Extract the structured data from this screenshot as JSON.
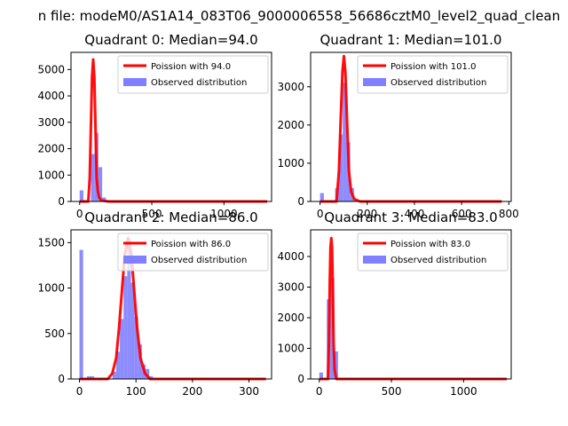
{
  "figure_title": "n file: modeM0/AS1A14_083T06_9000006558_56686cztM0_level2_quad_clean",
  "colors": {
    "poisson": "#ff0000",
    "observed": "#7f7fff",
    "observed_edge": "#0000ff",
    "axes": "#000000"
  },
  "chart_data": [
    {
      "type": "bar",
      "title": "Quadrant 0: Median=94.0",
      "xlim": [
        -60,
        1330
      ],
      "ylim": [
        0,
        5650
      ],
      "xticks": [
        0,
        500,
        1000
      ],
      "yticks": [
        0,
        1000,
        2000,
        3000,
        4000,
        5000
      ],
      "median": 94.0,
      "legend": {
        "position": "top-right",
        "poisson_label": "Poission with 94.0",
        "observed_label": "Observed distribution"
      },
      "hist_bins": [
        [
          0,
          26,
          420
        ],
        [
          52,
          26,
          0
        ],
        [
          78,
          26,
          1800
        ],
        [
          104,
          26,
          2600
        ],
        [
          130,
          26,
          1300
        ],
        [
          156,
          26,
          150
        ],
        [
          182,
          26,
          20
        ]
      ],
      "poisson_curve": [
        [
          0,
          0
        ],
        [
          60,
          0
        ],
        [
          70,
          900
        ],
        [
          78,
          2800
        ],
        [
          86,
          4700
        ],
        [
          94,
          5380
        ],
        [
          102,
          4700
        ],
        [
          110,
          2800
        ],
        [
          118,
          900
        ],
        [
          126,
          400
        ],
        [
          135,
          150
        ],
        [
          150,
          40
        ],
        [
          200,
          0
        ],
        [
          1300,
          0
        ]
      ]
    },
    {
      "type": "bar",
      "title": "Quadrant 1: Median=101.0",
      "xlim": [
        -40,
        810
      ],
      "ylim": [
        0,
        3900
      ],
      "xticks": [
        0,
        200,
        400,
        600,
        800
      ],
      "yticks": [
        0,
        1000,
        2000,
        3000
      ],
      "median": 101.0,
      "legend": {
        "position": "top-right",
        "poisson_label": "Poission with 101.0",
        "observed_label": "Observed distribution"
      },
      "hist_bins": [
        [
          0,
          16,
          220
        ],
        [
          16,
          16,
          0
        ],
        [
          32,
          16,
          0
        ],
        [
          48,
          16,
          20
        ],
        [
          64,
          16,
          350
        ],
        [
          80,
          16,
          1750
        ],
        [
          96,
          16,
          3100
        ],
        [
          112,
          16,
          1550
        ],
        [
          128,
          16,
          350
        ],
        [
          144,
          16,
          20
        ]
      ],
      "poisson_curve": [
        [
          0,
          0
        ],
        [
          70,
          0
        ],
        [
          80,
          800
        ],
        [
          88,
          2200
        ],
        [
          95,
          3400
        ],
        [
          101,
          3800
        ],
        [
          107,
          3400
        ],
        [
          114,
          2200
        ],
        [
          122,
          800
        ],
        [
          132,
          250
        ],
        [
          145,
          60
        ],
        [
          170,
          0
        ],
        [
          770,
          0
        ]
      ]
    },
    {
      "type": "bar",
      "title": "Quadrant 2: Median=86.0",
      "xlim": [
        -15,
        340
      ],
      "ylim": [
        0,
        1640
      ],
      "xticks": [
        0,
        100,
        200,
        300
      ],
      "yticks": [
        0,
        500,
        1000,
        1500
      ],
      "median": 86.0,
      "legend": {
        "position": "top-right",
        "poisson_label": "Poission with 86.0",
        "observed_label": "Observed distribution"
      },
      "hist_bins": [
        [
          0,
          6.5,
          1420
        ],
        [
          13,
          6.5,
          30
        ],
        [
          19.5,
          6.5,
          30
        ],
        [
          58.5,
          6.5,
          80
        ],
        [
          65,
          6.5,
          300
        ],
        [
          71.5,
          6.5,
          660
        ],
        [
          78,
          6.5,
          1130
        ],
        [
          84.5,
          6.5,
          1540
        ],
        [
          91,
          6.5,
          1060
        ],
        [
          97.5,
          6.5,
          680
        ],
        [
          104,
          6.5,
          380
        ],
        [
          110.5,
          6.5,
          160
        ],
        [
          117,
          6.5,
          110
        ],
        [
          123.5,
          6.5,
          30
        ]
      ],
      "poisson_curve": [
        [
          0,
          0
        ],
        [
          50,
          0
        ],
        [
          58,
          60
        ],
        [
          65,
          230
        ],
        [
          70,
          560
        ],
        [
          75,
          960
        ],
        [
          80,
          1360
        ],
        [
          86,
          1550
        ],
        [
          92,
          1360
        ],
        [
          97,
          960
        ],
        [
          102,
          560
        ],
        [
          108,
          230
        ],
        [
          116,
          60
        ],
        [
          125,
          0
        ],
        [
          330,
          0
        ]
      ]
    },
    {
      "type": "bar",
      "title": "Quadrant 3: Median=83.0",
      "xlim": [
        -60,
        1330
      ],
      "ylim": [
        0,
        4870
      ],
      "xticks": [
        0,
        500,
        1000
      ],
      "yticks": [
        0,
        1000,
        2000,
        3000,
        4000
      ],
      "median": 83.0,
      "legend": {
        "position": "top-right",
        "poisson_label": "Poission with 83.0",
        "observed_label": "Observed distribution"
      },
      "hist_bins": [
        [
          0,
          26,
          210
        ],
        [
          52,
          26,
          2600
        ],
        [
          78,
          26,
          3300
        ],
        [
          104,
          26,
          900
        ]
      ],
      "poisson_curve": [
        [
          0,
          0
        ],
        [
          60,
          0
        ],
        [
          67,
          1200
        ],
        [
          73,
          3200
        ],
        [
          78,
          4300
        ],
        [
          83,
          4600
        ],
        [
          88,
          4300
        ],
        [
          93,
          3200
        ],
        [
          99,
          1200
        ],
        [
          106,
          300
        ],
        [
          118,
          0
        ],
        [
          1300,
          0
        ]
      ]
    }
  ]
}
